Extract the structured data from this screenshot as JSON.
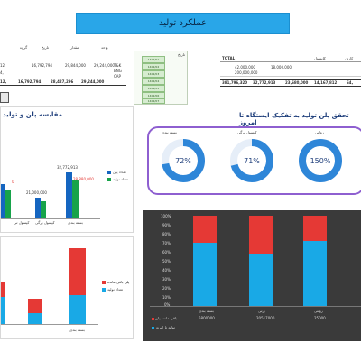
{
  "header": {
    "title": "عملکرد تولید"
  },
  "left_table": {
    "col_headers": [
      "گروه",
      "تاریخ",
      "مقدار",
      "واحد"
    ],
    "rows": [
      [
        "12,",
        "16,792,794",
        "29,844,000",
        "29,244,000"
      ],
      [
        "4,",
        "",
        "",
        ""
      ],
      [
        "",
        "",
        "",
        ""
      ]
    ],
    "total": [
      "12,",
      "16,792,794",
      "28,427,296",
      "29,244,000"
    ],
    "side_labels": [
      "T&K",
      "BNG",
      "CAP"
    ]
  },
  "right_table": {
    "col_headers": [
      "TOTAL",
      "",
      "",
      "کاپسول",
      "کارتن"
    ],
    "rows": [
      [
        "",
        "42,000,000",
        "18,000,000",
        "",
        ""
      ],
      [
        "",
        "200,000,000",
        "",
        "",
        ""
      ],
      [
        "",
        "",
        "",
        "",
        ""
      ]
    ],
    "total": [
      "381,796,320",
      "32,772,913",
      "23,680,000",
      "14,167,812",
      "64,"
    ]
  },
  "slicer": {
    "label": "تاریخ",
    "items": [
      "1402/01",
      "1402/02",
      "1402/03",
      "1402/04",
      "1402/05",
      "1402/06",
      "1402/07"
    ]
  },
  "compare_panel": {
    "title": "مقایسه پلن و تولید",
    "legend": [
      "تعداد پلن",
      "تعداد تولید"
    ],
    "categories": [
      "کپسول تی",
      "کپسول برگی",
      "بسته بندی"
    ],
    "value_labels": {
      "b1_top": "32,772,913",
      "b1_red": "28,880,000",
      "b2_top": "21,000,000",
      "b2_red": "",
      "b0_red": "0"
    }
  },
  "gauges_panel": {
    "title": "تحقق پلن تولید به تفکیک ایستگاه تا امروز",
    "items": [
      {
        "label": "بسته بندی",
        "value": "72%"
      },
      {
        "label": "کپسول برگی",
        "value": "71%"
      },
      {
        "label": "رولتی",
        "value": "150%"
      }
    ],
    "color": "#2e86d8"
  },
  "bottom_left_panel": {
    "legend": [
      "پلن باقی مانده",
      "تعداد تولید"
    ],
    "categories": [
      "",
      "",
      "بسته بندی"
    ]
  },
  "dark_panel": {
    "y_ticks": [
      "100%",
      "90%",
      "80%",
      "70%",
      "60%",
      "50%",
      "40%",
      "30%",
      "20%",
      "10%",
      "0%"
    ],
    "table_headers": [
      "بسته بندی",
      "برتی",
      "رولتی"
    ],
    "table_rows": [
      [
        "باقی مانده پلن",
        "5800000",
        "20517000",
        "25000"
      ],
      [
        "تولید تا امروز",
        "",
        "",
        ""
      ]
    ]
  },
  "colors": {
    "accent": "#29a6e8",
    "plan_blue": "#1565c0",
    "produced_green": "#17a34a",
    "red": "#e53935",
    "sky": "#19a9e6",
    "gauge": "#2e86d8"
  }
}
